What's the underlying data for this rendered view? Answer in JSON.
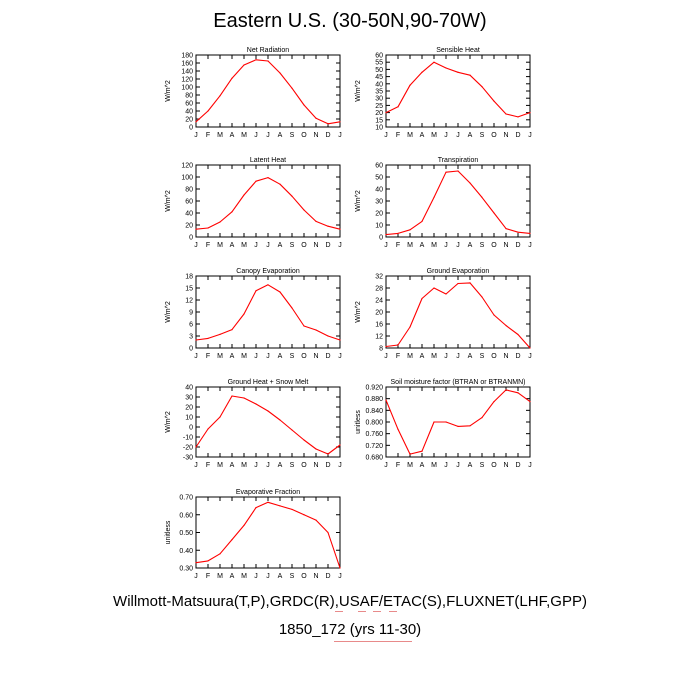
{
  "figure_title": "Eastern U.S. (30-50N,90-70W)",
  "footer": {
    "sources": "Willmott-Matsuura(T,P),GRDC(R),USAF/ETAC(S),FLUXNET(LHF,GPP)",
    "case": "1850_172 (yrs 11-30)"
  },
  "colors": {
    "line": "#ff0000",
    "axis": "#000000"
  },
  "chart_data": [
    {
      "type": "line",
      "title": "Net Radiation",
      "ylabel": "W/m^2",
      "categories": [
        "J",
        "F",
        "M",
        "A",
        "M",
        "J",
        "J",
        "A",
        "S",
        "O",
        "N",
        "D",
        "J"
      ],
      "values": [
        13,
        40,
        78,
        122,
        155,
        168,
        165,
        135,
        97,
        55,
        22,
        8,
        13
      ],
      "ylim": [
        0,
        180
      ],
      "yticks": [
        "0",
        "20",
        "40",
        "60",
        "80",
        "100",
        "120",
        "140",
        "160",
        "180"
      ]
    },
    {
      "type": "line",
      "title": "Sensible Heat",
      "ylabel": "W/m^2",
      "categories": [
        "J",
        "F",
        "M",
        "A",
        "M",
        "J",
        "J",
        "A",
        "S",
        "O",
        "N",
        "D",
        "J"
      ],
      "values": [
        20,
        24,
        39,
        48,
        55,
        51,
        48,
        46,
        38,
        28,
        19,
        17,
        20
      ],
      "ylim": [
        10,
        60
      ],
      "yticks": [
        "10",
        "15",
        "20",
        "25",
        "30",
        "35",
        "40",
        "45",
        "50",
        "55",
        "60"
      ]
    },
    {
      "type": "line",
      "title": "Latent Heat",
      "ylabel": "W/m^2",
      "categories": [
        "J",
        "F",
        "M",
        "A",
        "M",
        "J",
        "J",
        "A",
        "S",
        "O",
        "N",
        "D",
        "J"
      ],
      "values": [
        13,
        15,
        25,
        42,
        70,
        93,
        99,
        88,
        68,
        45,
        26,
        18,
        13
      ],
      "ylim": [
        0,
        120
      ],
      "yticks": [
        "0",
        "20",
        "40",
        "60",
        "80",
        "100",
        "120"
      ]
    },
    {
      "type": "line",
      "title": "Transpiration",
      "ylabel": "W/m^2",
      "categories": [
        "J",
        "F",
        "M",
        "A",
        "M",
        "J",
        "J",
        "A",
        "S",
        "O",
        "N",
        "D",
        "J"
      ],
      "values": [
        2,
        3,
        6,
        13,
        33,
        54,
        55,
        45,
        33,
        20,
        7,
        4,
        3
      ],
      "ylim": [
        0,
        60
      ],
      "yticks": [
        "0",
        "10",
        "20",
        "30",
        "40",
        "50",
        "60"
      ]
    },
    {
      "type": "line",
      "title": "Canopy Evaporation",
      "ylabel": "W/m^2",
      "categories": [
        "J",
        "F",
        "M",
        "A",
        "M",
        "J",
        "J",
        "A",
        "S",
        "O",
        "N",
        "D",
        "J"
      ],
      "values": [
        2,
        2.4,
        3.4,
        4.6,
        8.5,
        14.3,
        15.8,
        14,
        10,
        5.5,
        4.5,
        3,
        2
      ],
      "ylim": [
        0,
        18
      ],
      "yticks": [
        "0",
        "3",
        "6",
        "9",
        "12",
        "15",
        "18"
      ]
    },
    {
      "type": "line",
      "title": "Ground Evaporation",
      "ylabel": "W/m^2",
      "categories": [
        "J",
        "F",
        "M",
        "A",
        "M",
        "J",
        "J",
        "A",
        "S",
        "O",
        "N",
        "D",
        "J"
      ],
      "values": [
        8.5,
        9,
        15,
        24.5,
        28,
        26,
        29.5,
        29.7,
        25,
        19,
        15.5,
        12.5,
        8
      ],
      "ylim": [
        8,
        32
      ],
      "yticks": [
        "8",
        "12",
        "16",
        "20",
        "24",
        "28",
        "32"
      ]
    },
    {
      "type": "line",
      "title": "Ground Heat + Snow Melt",
      "ylabel": "W/m^2",
      "categories": [
        "J",
        "F",
        "M",
        "A",
        "M",
        "J",
        "J",
        "A",
        "S",
        "O",
        "N",
        "D",
        "J"
      ],
      "values": [
        -20,
        -2,
        10,
        31,
        29,
        23,
        16,
        7,
        -3,
        -13,
        -22,
        -27,
        -18
      ],
      "ylim": [
        -30,
        40
      ],
      "yticks": [
        "-30",
        "-20",
        "-10",
        "0",
        "10",
        "20",
        "30",
        "40"
      ]
    },
    {
      "type": "line",
      "title": "Soil moisture factor (BTRAN or BTRANMN)",
      "ylabel": "unitless",
      "categories": [
        "J",
        "F",
        "M",
        "A",
        "M",
        "J",
        "J",
        "A",
        "S",
        "O",
        "N",
        "D",
        "J"
      ],
      "values": [
        0.875,
        0.775,
        0.69,
        0.7,
        0.8,
        0.8,
        0.785,
        0.787,
        0.815,
        0.87,
        0.91,
        0.9,
        0.87
      ],
      "ylim": [
        0.68,
        0.92
      ],
      "yticks": [
        "0.680",
        "0.720",
        "0.760",
        "0.800",
        "0.840",
        "0.880",
        "0.920"
      ],
      "ytick_values": [
        0.68,
        0.72,
        0.76,
        0.8,
        0.84,
        0.88,
        0.92
      ]
    },
    {
      "type": "line",
      "title": "Evaporative Fraction",
      "ylabel": "unitless",
      "categories": [
        "J",
        "F",
        "M",
        "A",
        "M",
        "J",
        "J",
        "A",
        "S",
        "O",
        "N",
        "D",
        "J"
      ],
      "values": [
        0.33,
        0.34,
        0.38,
        0.46,
        0.54,
        0.64,
        0.67,
        0.65,
        0.63,
        0.6,
        0.57,
        0.5,
        0.3
      ],
      "ylim": [
        0.3,
        0.7
      ],
      "yticks": [
        "0.30",
        "0.40",
        "0.50",
        "0.60",
        "0.70"
      ]
    }
  ]
}
